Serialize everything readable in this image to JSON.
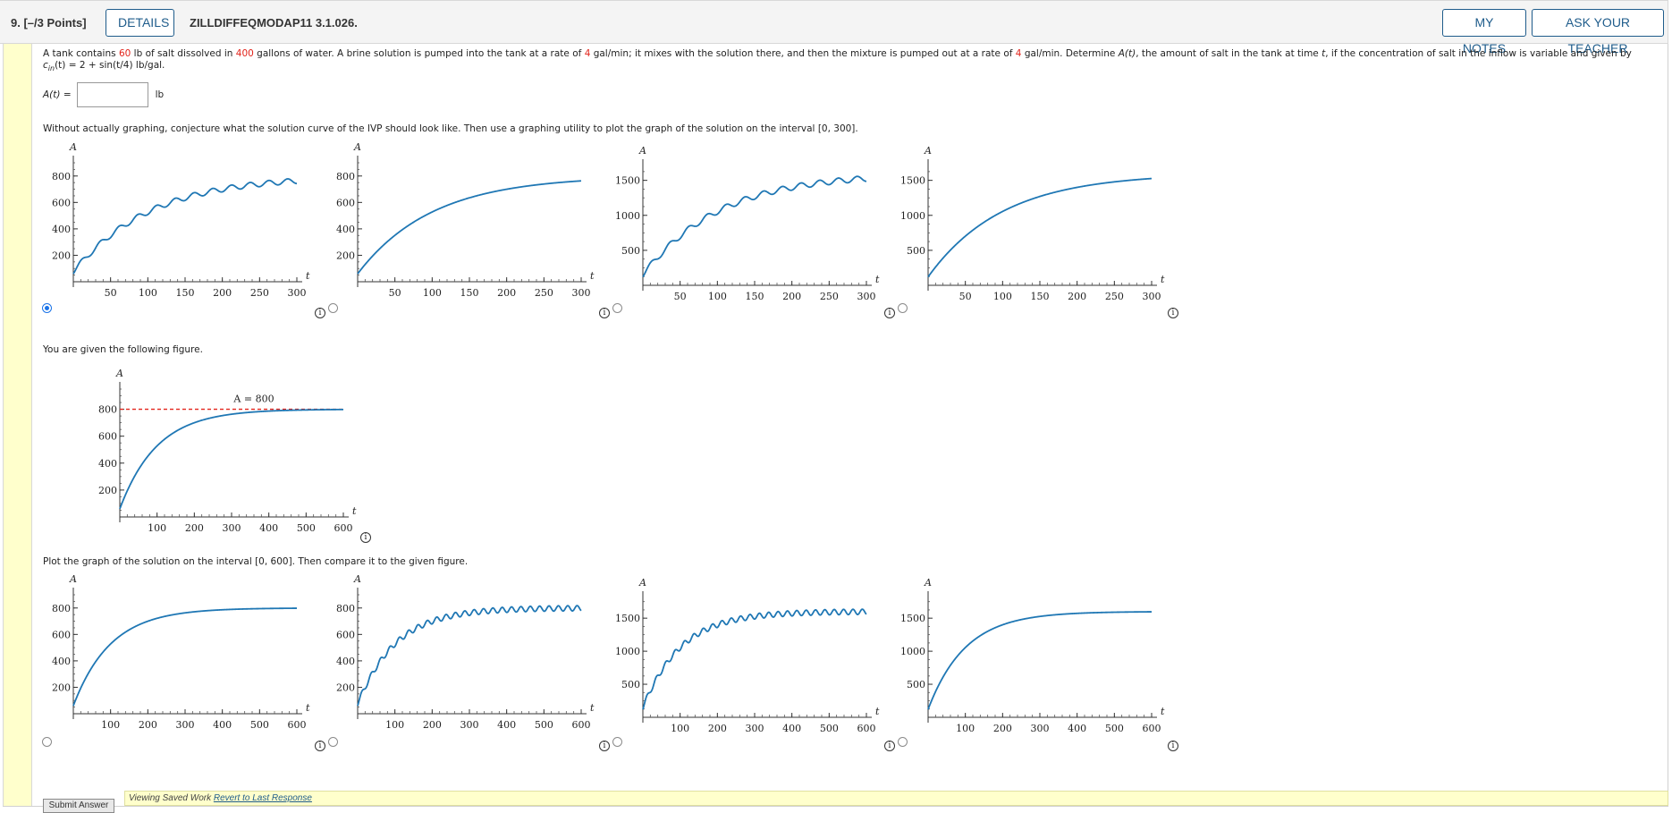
{
  "header": {
    "question_number": "9.  [–/3 Points]",
    "details_label": "DETAILS",
    "question_code": "ZILLDIFFEQMODAP11 3.1.026.",
    "my_notes_label": "MY NOTES",
    "ask_teacher_label": "ASK YOUR TEACHER"
  },
  "problem": {
    "p1": "A tank contains ",
    "v_salt": "60",
    "p2": " lb of salt dissolved in ",
    "v_gal": "400",
    "p3": " gallons of water. A brine solution is pumped into the tank at a rate of ",
    "v_rate_in": "4",
    "p4": " gal/min; it mixes with the solution there, and then the mixture is pumped out at a rate of ",
    "v_rate_out": "4",
    "p5": " gal/min. Determine ",
    "func": "A(t)",
    "p6": ", the amount of salt in the tank at time ",
    "tvar": "t",
    "p7": ", if the concentration of salt in the inflow is variable and given by",
    "conc_c": "c",
    "conc_sub": "in",
    "conc_rest": "(t) = 2 + sin(t/4) lb/gal."
  },
  "answer": {
    "label": "A(t) =",
    "value": "",
    "unit": "lb"
  },
  "section1_prompt": "Without actually graphing, conjecture what the solution curve of the IVP should look like. Then use a graphing utility to plot the graph of the solution on the interval [0, 300].",
  "section2_prompt": "You are given the following figure.",
  "section3_prompt": "Plot the graph of the solution on the interval [0, 600]. Then compare it to the given figure.",
  "footer": {
    "submit_label": "Submit Answer",
    "saved_text": "Viewing Saved Work ",
    "revert_link": "Revert to Last Response"
  },
  "colors": {
    "curve": "#1f77b4",
    "asymptote": "#e2231a",
    "accent": "#1f5c8b",
    "highlight": "#ffffcc"
  },
  "chart_data": [
    {
      "id": "q1a",
      "type": "line",
      "title": "",
      "xlabel": "t",
      "ylabel": "A",
      "xlim": [
        0,
        300
      ],
      "ylim": [
        0,
        900
      ],
      "xticks": [
        50,
        100,
        150,
        200,
        250,
        300
      ],
      "yticks": [
        200,
        400,
        600,
        800
      ],
      "curve": "A(t)=800-740e^{-t/100} + oscillation",
      "A0": 60,
      "Ainf": 800,
      "k": 0.01,
      "osc": 1,
      "selected": true
    },
    {
      "id": "q1b",
      "type": "line",
      "title": "",
      "xlabel": "t",
      "ylabel": "A",
      "xlim": [
        0,
        300
      ],
      "ylim": [
        0,
        900
      ],
      "xticks": [
        50,
        100,
        150,
        200,
        250,
        300
      ],
      "yticks": [
        200,
        400,
        600,
        800
      ],
      "curve": "A(t)=800-740e^{-t/100}",
      "A0": 60,
      "Ainf": 800,
      "k": 0.01,
      "osc": 0,
      "selected": false
    },
    {
      "id": "q1c",
      "type": "line",
      "title": "",
      "xlabel": "t",
      "ylabel": "A",
      "xlim": [
        0,
        300
      ],
      "ylim": [
        0,
        1700
      ],
      "xticks": [
        50,
        100,
        150,
        200,
        250,
        300
      ],
      "yticks": [
        500,
        1000,
        1500
      ],
      "curve": "A(t)=1600-1480e^{-t/100} + oscillation",
      "A0": 120,
      "Ainf": 1600,
      "k": 0.01,
      "osc": 1,
      "selected": false
    },
    {
      "id": "q1d",
      "type": "line",
      "title": "",
      "xlabel": "t",
      "ylabel": "A",
      "xlim": [
        0,
        300
      ],
      "ylim": [
        0,
        1700
      ],
      "xticks": [
        50,
        100,
        150,
        200,
        250,
        300
      ],
      "yticks": [
        500,
        1000,
        1500
      ],
      "curve": "A(t)=1600-1480e^{-t/100}",
      "A0": 120,
      "Ainf": 1600,
      "k": 0.01,
      "osc": 0,
      "selected": false
    },
    {
      "id": "given",
      "type": "line",
      "title": "",
      "xlabel": "t",
      "ylabel": "A",
      "xlim": [
        0,
        600
      ],
      "ylim": [
        0,
        950
      ],
      "xticks": [
        100,
        200,
        300,
        400,
        500,
        600
      ],
      "yticks": [
        200,
        400,
        600,
        800
      ],
      "annotation": "A = 800",
      "asymptote": 800,
      "A0": 60,
      "Ainf": 800,
      "k": 0.01,
      "osc": 0
    },
    {
      "id": "q2a",
      "type": "line",
      "title": "",
      "xlabel": "t",
      "ylabel": "A",
      "xlim": [
        0,
        600
      ],
      "ylim": [
        0,
        900
      ],
      "xticks": [
        100,
        200,
        300,
        400,
        500,
        600
      ],
      "yticks": [
        200,
        400,
        600,
        800
      ],
      "A0": 60,
      "Ainf": 800,
      "k": 0.01,
      "osc": 0,
      "selected": false
    },
    {
      "id": "q2b",
      "type": "line",
      "title": "",
      "xlabel": "t",
      "ylabel": "A",
      "xlim": [
        0,
        600
      ],
      "ylim": [
        0,
        900
      ],
      "xticks": [
        100,
        200,
        300,
        400,
        500,
        600
      ],
      "yticks": [
        200,
        400,
        600,
        800
      ],
      "A0": 60,
      "Ainf": 800,
      "k": 0.01,
      "osc": 1,
      "selected": false
    },
    {
      "id": "q2c",
      "type": "line",
      "title": "",
      "xlabel": "t",
      "ylabel": "A",
      "xlim": [
        0,
        600
      ],
      "ylim": [
        0,
        1800
      ],
      "xticks": [
        100,
        200,
        300,
        400,
        500,
        600
      ],
      "yticks": [
        500,
        1000,
        1500
      ],
      "A0": 120,
      "Ainf": 1600,
      "k": 0.01,
      "osc": 1,
      "selected": false
    },
    {
      "id": "q2d",
      "type": "line",
      "title": "",
      "xlabel": "t",
      "ylabel": "A",
      "xlim": [
        0,
        600
      ],
      "ylim": [
        0,
        1800
      ],
      "xticks": [
        100,
        200,
        300,
        400,
        500,
        600
      ],
      "yticks": [
        500,
        1000,
        1500
      ],
      "A0": 120,
      "Ainf": 1600,
      "k": 0.01,
      "osc": 0,
      "selected": false
    }
  ]
}
